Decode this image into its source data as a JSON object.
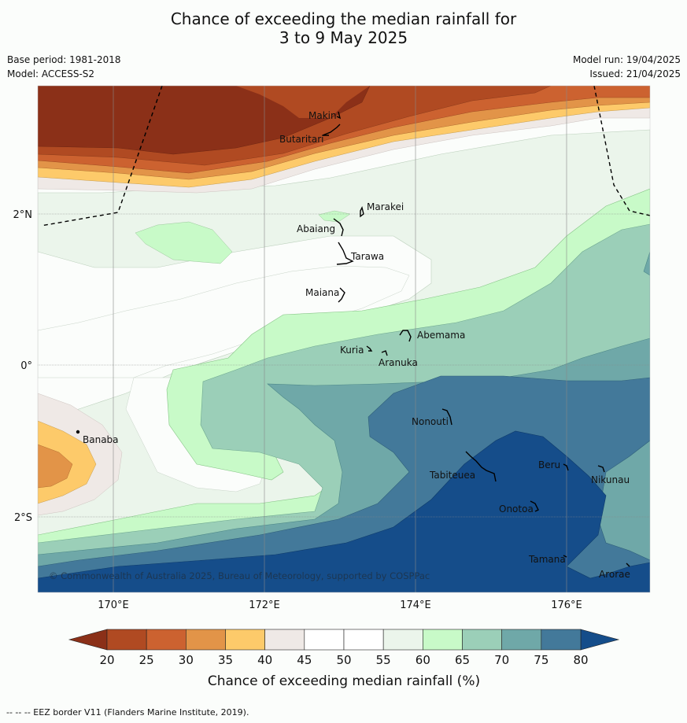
{
  "title": {
    "line1": "Chance of exceeding the median rainfall for",
    "line2": "3 to 9 May 2025"
  },
  "meta": {
    "base_period": "Base period: 1981-2018",
    "model": "Model: ACCESS-S2",
    "model_run": "Model run: 19/04/2025",
    "issued": "Issued: 21/04/2025"
  },
  "map": {
    "lat_labels": [
      "2°N",
      "0°",
      "2°S"
    ],
    "lon_labels": [
      "170°E",
      "172°E",
      "174°E",
      "176°E"
    ],
    "places": {
      "makin": "Makin",
      "butaritari": "Butaritari",
      "marakei": "Marakei",
      "abaiang": "Abaiang",
      "tarawa": "Tarawa",
      "maiana": "Maiana",
      "abemama": "Abemama",
      "kuria": "Kuria",
      "aranuka": "Aranuka",
      "nonouti": "Nonouti",
      "banaba": "Banaba",
      "beru": "Beru",
      "nikunau": "Nikunau",
      "tabiteuea": "Tabiteuea",
      "onotoa": "Onotoa",
      "tamana": "Tamana",
      "arorae": "Arorae"
    },
    "copyright": "© Commonwealth of Australia 2025, Bureau of Meteorology, supported by COSPPac"
  },
  "colorbar": {
    "ticks": [
      "20",
      "25",
      "30",
      "35",
      "40",
      "45",
      "50",
      "55",
      "60",
      "65",
      "70",
      "75",
      "80"
    ],
    "colors": [
      "#b04a22",
      "#cc6230",
      "#e29448",
      "#fdca6a",
      "#efe9e6",
      "#ffffff",
      "#ffffff",
      "#ebf5eb",
      "#c8fac8",
      "#9bcfb8",
      "#6fa8a8",
      "#43799a"
    ],
    "under_color": "#8b3018",
    "over_color": "#154d8a",
    "label": "Chance of exceeding median rainfall (%)"
  },
  "footnote": "--  --  -- EEZ border V11 (Flanders Marine Institute, 2019)."
}
